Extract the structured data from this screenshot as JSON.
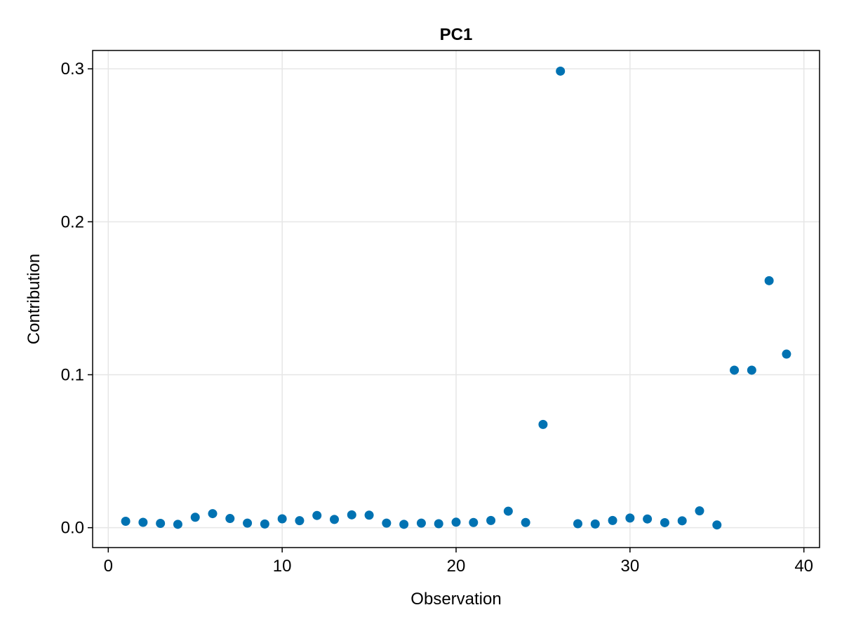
{
  "chart_data": {
    "type": "scatter",
    "title": "PC1",
    "xlabel": "Observation",
    "ylabel": "Contribution",
    "xlim": [
      -0.9,
      40.9
    ],
    "ylim": [
      -0.013,
      0.312
    ],
    "xticks": [
      0,
      10,
      20,
      30,
      40
    ],
    "xtick_labels": [
      "0",
      "10",
      "20",
      "30",
      "40"
    ],
    "yticks": [
      0.0,
      0.1,
      0.2,
      0.3
    ],
    "ytick_labels": [
      "0.0",
      "0.1",
      "0.2",
      "0.3"
    ],
    "grid": true,
    "legend": "none",
    "colors": {
      "marker": "#0072b2",
      "grid": "#e6e6e6",
      "frame": "#000000"
    },
    "series": [
      {
        "x": [
          1,
          2,
          3,
          4,
          5,
          6,
          7,
          8,
          9,
          10,
          11,
          12,
          13,
          14,
          15,
          16,
          17,
          18,
          19,
          20,
          21,
          22,
          23,
          24,
          25,
          26,
          27,
          28,
          29,
          30,
          31,
          32,
          33,
          34,
          35,
          36,
          37,
          38,
          39
        ],
        "y": [
          0.0042,
          0.0035,
          0.0028,
          0.0022,
          0.0068,
          0.0092,
          0.006,
          0.003,
          0.0024,
          0.0058,
          0.0046,
          0.008,
          0.0054,
          0.0084,
          0.0082,
          0.003,
          0.0022,
          0.003,
          0.0026,
          0.0036,
          0.0034,
          0.0047,
          0.0108,
          0.0034,
          0.0675,
          0.2985,
          0.0026,
          0.0024,
          0.0047,
          0.0063,
          0.0057,
          0.0033,
          0.0045,
          0.011,
          0.0018,
          0.103,
          0.103,
          0.1615,
          0.1135
        ]
      }
    ]
  }
}
